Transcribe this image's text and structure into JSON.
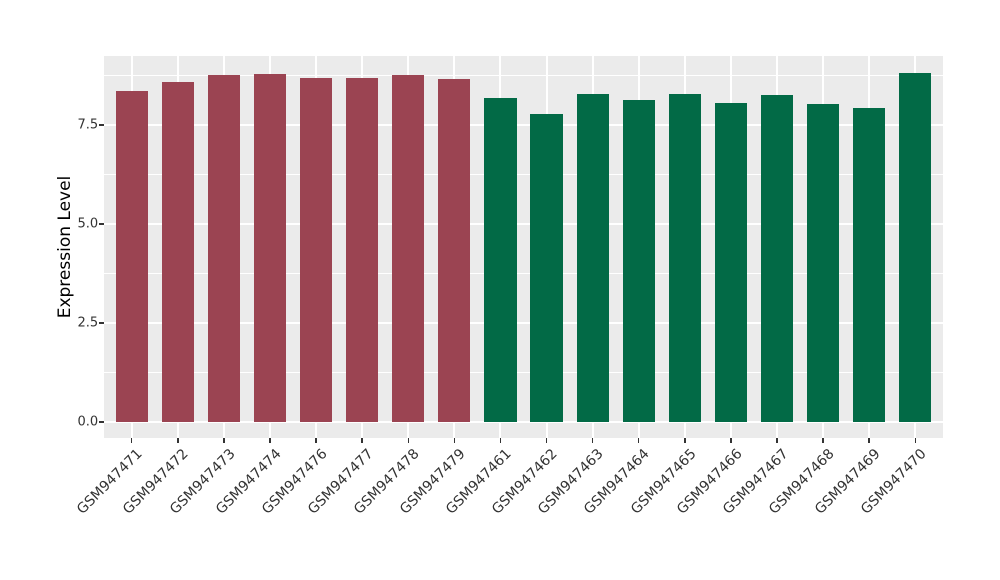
{
  "chart_data": {
    "type": "bar",
    "title": "",
    "xlabel": "",
    "ylabel": "Expression Level",
    "categories": [
      "GSM947471",
      "GSM947472",
      "GSM947473",
      "GSM947474",
      "GSM947476",
      "GSM947477",
      "GSM947478",
      "GSM947479",
      "GSM947461",
      "GSM947462",
      "GSM947463",
      "GSM947464",
      "GSM947465",
      "GSM947466",
      "GSM947467",
      "GSM947468",
      "GSM947469",
      "GSM947470"
    ],
    "values": [
      8.36,
      8.59,
      8.76,
      8.79,
      8.68,
      8.68,
      8.76,
      8.65,
      8.18,
      7.78,
      8.28,
      8.13,
      8.28,
      8.05,
      8.26,
      8.03,
      7.93,
      8.81
    ],
    "groups": [
      "group1",
      "group1",
      "group1",
      "group1",
      "group1",
      "group1",
      "group1",
      "group1",
      "group2",
      "group2",
      "group2",
      "group2",
      "group2",
      "group2",
      "group2",
      "group2",
      "group2",
      "group2"
    ],
    "group_colors": {
      "group1": "#9B4452",
      "group2": "#026A46"
    },
    "yticks": [
      0.0,
      2.5,
      5.0,
      7.5
    ],
    "ytick_labels": [
      "0.0",
      "2.5",
      "5.0",
      "7.5"
    ],
    "minor_yticks": [
      1.25,
      3.75,
      6.25,
      8.75
    ],
    "ylim": [
      -0.44,
      9.24
    ],
    "grid": true,
    "panel_background": "#EBEBEB",
    "grid_color": "#FFFFFF",
    "legend_position": "none",
    "x_label_rotation_deg": 45
  }
}
